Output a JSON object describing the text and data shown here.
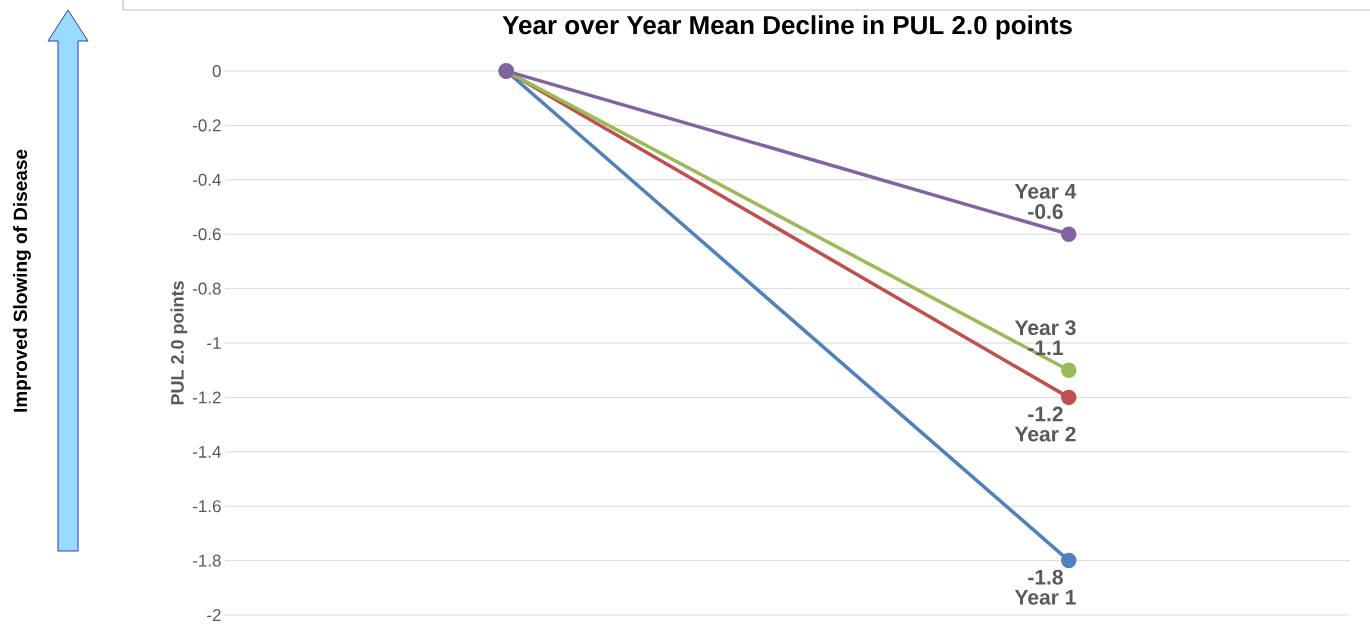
{
  "chart_data": {
    "type": "line",
    "title": "Year over Year Mean Decline in PUL 2.0 points",
    "ylabel": "PUL 2.0 points",
    "categories": [
      null,
      null
    ],
    "series": [
      {
        "name": "Year 1",
        "color": "#4f81bd",
        "values": [
          0,
          -1.8
        ],
        "value_labels": [
          null,
          "-1.8"
        ]
      },
      {
        "name": "Year 2",
        "color": "#c0504d",
        "values": [
          0,
          -1.2
        ],
        "value_labels": [
          null,
          "-1.2"
        ]
      },
      {
        "name": "Year 3",
        "color": "#9bbb59",
        "values": [
          0,
          -1.1
        ],
        "value_labels": [
          null,
          "-1.1"
        ]
      },
      {
        "name": "Year 4",
        "color": "#8064a2",
        "values": [
          0,
          -0.6
        ],
        "value_labels": [
          null,
          "-0.6"
        ]
      }
    ],
    "ylim": [
      -2,
      0
    ],
    "yticks": [
      -2,
      -1.8,
      -1.6,
      -1.4,
      -1.2,
      -1,
      -0.8,
      -0.6,
      -0.4,
      -0.2,
      {
        "value": 0,
        "label": "0"
      }
    ],
    "grid": "y",
    "marker": "circle",
    "annotations": [
      "Improved  Slowing of Disease"
    ]
  }
}
